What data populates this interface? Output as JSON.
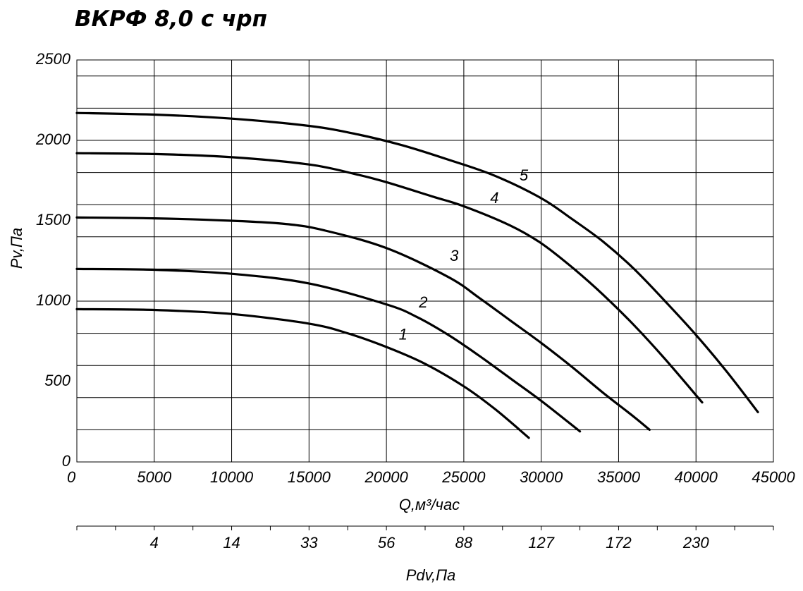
{
  "chart_data": {
    "type": "line",
    "title": "ВКРФ 8,0 с чрп",
    "xlabel": "Q,м³/час",
    "ylabel": "Pv,Па",
    "secondary_xlabel": "Pdv,Па",
    "xlim": [
      0,
      45000
    ],
    "ylim": [
      0,
      2500
    ],
    "x_ticks": [
      "0",
      "5000",
      "10000",
      "15000",
      "20000",
      "25000",
      "30000",
      "35000",
      "40000",
      "45000"
    ],
    "y_ticks": [
      "0",
      "500",
      "1000",
      "1500",
      "2000",
      "2500"
    ],
    "secondary_ticks": [
      {
        "label": "4",
        "q": 5000
      },
      {
        "label": "14",
        "q": 10000
      },
      {
        "label": "33",
        "q": 15000
      },
      {
        "label": "56",
        "q": 20000
      },
      {
        "label": "88",
        "q": 25000
      },
      {
        "label": "127",
        "q": 30000
      },
      {
        "label": "172",
        "q": 35000
      },
      {
        "label": "230",
        "q": 40000
      }
    ],
    "grid": true,
    "series": [
      {
        "name": "1",
        "label_at": [
          20800,
          760
        ],
        "x": [
          0,
          5000,
          10000,
          15000,
          17500,
          20000,
          22500,
          25000,
          27000,
          29200
        ],
        "y": [
          950,
          945,
          920,
          860,
          800,
          715,
          610,
          470,
          330,
          150
        ]
      },
      {
        "name": "2",
        "label_at": [
          22100,
          960
        ],
        "x": [
          0,
          5000,
          10000,
          15000,
          20000,
          22000,
          24000,
          26000,
          28000,
          30000,
          32500
        ],
        "y": [
          1200,
          1195,
          1170,
          1110,
          980,
          900,
          790,
          660,
          520,
          380,
          190
        ]
      },
      {
        "name": "3",
        "label_at": [
          24100,
          1250
        ],
        "x": [
          0,
          5000,
          10000,
          13500,
          16000,
          20000,
          24000,
          26000,
          28000,
          30000,
          32000,
          34000,
          36000,
          37000
        ],
        "y": [
          1520,
          1515,
          1500,
          1480,
          1440,
          1330,
          1150,
          1020,
          880,
          740,
          590,
          430,
          280,
          200
        ]
      },
      {
        "name": "4",
        "label_at": [
          26700,
          1610
        ],
        "x": [
          0,
          5000,
          10000,
          15000,
          18000,
          20000,
          23000,
          25000,
          28000,
          30000,
          32000,
          34000,
          36000,
          38000,
          40400
        ],
        "y": [
          1920,
          1915,
          1895,
          1850,
          1790,
          1740,
          1650,
          1590,
          1470,
          1360,
          1210,
          1040,
          850,
          640,
          370
        ]
      },
      {
        "name": "5",
        "label_at": [
          28600,
          1750
        ],
        "x": [
          0,
          5000,
          10000,
          15000,
          18000,
          21000,
          24000,
          27000,
          30000,
          32000,
          34000,
          36000,
          38000,
          40000,
          42000,
          44000
        ],
        "y": [
          2170,
          2160,
          2135,
          2090,
          2040,
          1970,
          1880,
          1780,
          1640,
          1510,
          1370,
          1200,
          1000,
          790,
          560,
          310
        ]
      }
    ]
  }
}
